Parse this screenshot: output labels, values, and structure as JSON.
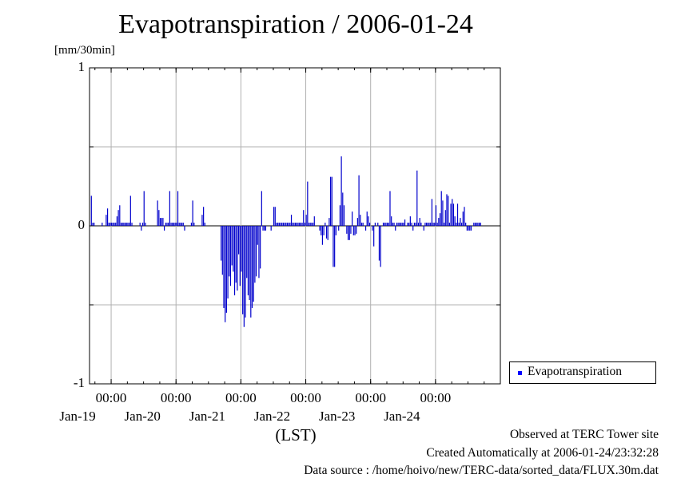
{
  "chart_data": {
    "type": "bar",
    "title": "Evapotranspiration / 2006-01-24",
    "ylabel": "[mm/30min]",
    "xlabel": "(LST)",
    "ylim": [
      -1,
      1
    ],
    "yticks": [
      "1",
      "0",
      "-1"
    ],
    "xticks": [
      {
        "time": "00:00",
        "date": "Jan-19"
      },
      {
        "time": "00:00",
        "date": "Jan-20"
      },
      {
        "time": "00:00",
        "date": "Jan-21"
      },
      {
        "time": "00:00",
        "date": "Jan-22"
      },
      {
        "time": "00:00",
        "date": "Jan-23"
      },
      {
        "time": "00:00",
        "date": "Jan-24"
      }
    ],
    "x_range_days": [
      "2006-01-18T16:00",
      "2006-01-24T24:00"
    ],
    "grid": true,
    "legend": "right",
    "series": [
      {
        "name": "Evapotranspiration",
        "color": "#0000cc",
        "interval_hours": 0.5,
        "start": "2006-01-18T16:00",
        "values": [
          0.0,
          0.19,
          0.02,
          0.02,
          0.0,
          0.0,
          0.0,
          0.0,
          0.0,
          0.02,
          0.0,
          0.0,
          0.07,
          0.11,
          0.02,
          0.02,
          0.02,
          0.02,
          0.02,
          0.02,
          0.06,
          0.1,
          0.13,
          0.02,
          0.02,
          0.02,
          0.02,
          0.02,
          0.02,
          0.02,
          0.19,
          0.02,
          0.0,
          0.0,
          0.0,
          0.0,
          0.0,
          0.02,
          -0.03,
          0.02,
          0.22,
          0.02,
          0.0,
          0.0,
          0.0,
          0.0,
          0.0,
          0.0,
          0.0,
          0.0,
          0.16,
          0.1,
          0.05,
          0.05,
          0.05,
          -0.03,
          0.02,
          0.02,
          0.02,
          0.22,
          0.02,
          0.02,
          0.02,
          0.02,
          0.02,
          0.22,
          0.02,
          0.02,
          0.02,
          0.02,
          -0.03,
          0.0,
          0.0,
          0.0,
          0.0,
          0.02,
          0.16,
          0.02,
          0.0,
          0.0,
          0.0,
          0.0,
          0.0,
          0.07,
          0.12,
          0.02,
          0.0,
          0.0,
          0.0,
          0.0,
          0.0,
          0.0,
          0.0,
          0.0,
          0.0,
          0.0,
          0.0,
          -0.22,
          -0.31,
          -0.52,
          -0.61,
          -0.55,
          -0.46,
          -0.32,
          -0.38,
          -0.25,
          -0.29,
          -0.44,
          -0.36,
          -0.41,
          -0.18,
          -0.38,
          -0.29,
          -0.56,
          -0.64,
          -0.58,
          -0.33,
          -0.44,
          -0.47,
          -0.58,
          -0.52,
          -0.48,
          -0.36,
          -0.32,
          -0.12,
          -0.33,
          -0.27,
          0.22,
          -0.03,
          -0.03,
          -0.03,
          0.0,
          0.0,
          0.0,
          -0.03,
          0.0,
          0.12,
          0.12,
          0.02,
          0.02,
          0.02,
          0.02,
          0.02,
          0.02,
          0.02,
          0.02,
          0.02,
          0.02,
          0.02,
          0.07,
          0.02,
          0.02,
          0.02,
          0.02,
          0.02,
          0.02,
          0.02,
          0.02,
          0.1,
          0.02,
          0.07,
          0.28,
          0.02,
          0.02,
          0.02,
          0.02,
          0.06,
          0.0,
          0.0,
          0.0,
          -0.03,
          -0.06,
          -0.12,
          -0.06,
          0.02,
          -0.08,
          -0.09,
          0.05,
          0.31,
          0.31,
          -0.26,
          -0.26,
          -0.06,
          0.0,
          -0.03,
          0.13,
          0.44,
          0.21,
          0.13,
          0.0,
          -0.05,
          -0.09,
          -0.09,
          -0.05,
          0.09,
          -0.06,
          -0.06,
          -0.05,
          0.05,
          0.32,
          0.07,
          0.02,
          0.02,
          0.0,
          -0.03,
          0.09,
          0.06,
          0.02,
          0.0,
          -0.03,
          -0.13,
          0.02,
          0.0,
          0.02,
          -0.22,
          -0.26,
          0.0,
          0.02,
          0.02,
          0.02,
          0.02,
          0.02,
          0.22,
          0.06,
          0.02,
          0.02,
          -0.03,
          0.02,
          0.02,
          0.02,
          0.02,
          0.02,
          0.02,
          0.04,
          0.0,
          0.02,
          0.02,
          0.06,
          0.02,
          -0.03,
          0.02,
          0.02,
          0.35,
          0.02,
          0.05,
          0.02,
          0.0,
          -0.03,
          0.02,
          0.02,
          0.02,
          0.02,
          0.02,
          0.17,
          0.02,
          0.02,
          0.13,
          0.02,
          0.05,
          0.08,
          0.22,
          0.16,
          0.02,
          0.1,
          0.2,
          0.19,
          0.02,
          0.14,
          0.17,
          0.14,
          0.06,
          0.02,
          0.14,
          0.02,
          0.05,
          0.02,
          0.09,
          0.12,
          0.02,
          -0.03,
          -0.03,
          -0.03,
          -0.03,
          0.0,
          0.02,
          0.02,
          0.02,
          0.02,
          0.02,
          0.02
        ]
      }
    ]
  },
  "footer": {
    "line1": "Observed at TERC Tower site",
    "line2": "Created Automatically at 2006-01-24/23:32:28",
    "line3": "Data source : /home/hoivo/new/TERC-data/sorted_data/FLUX.30m.dat"
  }
}
